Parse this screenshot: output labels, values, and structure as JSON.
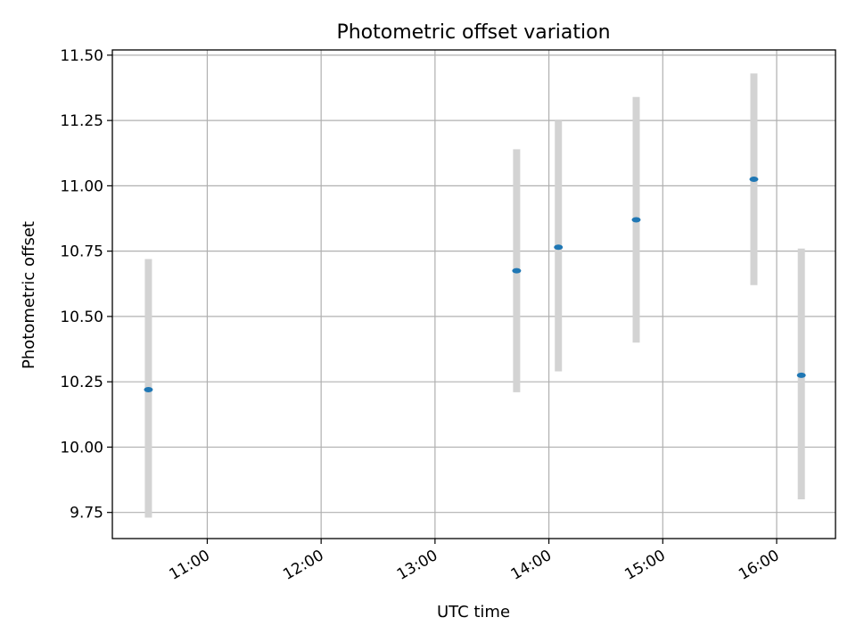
{
  "chart_data": {
    "type": "scatter",
    "title": "Photometric offset variation",
    "xlabel": "UTC time",
    "ylabel": "Photometric offset",
    "x_unit": "UTC time (HH:MM)",
    "xlim": [
      "10:10",
      "16:31"
    ],
    "ylim": [
      9.65,
      11.52
    ],
    "grid": true,
    "x_ticks": [
      "11:00",
      "12:00",
      "13:00",
      "14:00",
      "15:00",
      "16:00"
    ],
    "y_ticks": [
      "9.75",
      "10.00",
      "10.25",
      "10.50",
      "10.75",
      "11.00",
      "11.25",
      "11.50"
    ],
    "series": [
      {
        "marker_color": "#1f77b4",
        "errorbar_color": "#d3d3d3",
        "points": [
          {
            "x": "10:29",
            "y": 10.22,
            "yerr_low": 9.73,
            "yerr_high": 10.72
          },
          {
            "x": "13:43",
            "y": 10.675,
            "yerr_low": 10.21,
            "yerr_high": 11.14
          },
          {
            "x": "14:05",
            "y": 10.765,
            "yerr_low": 10.29,
            "yerr_high": 11.25
          },
          {
            "x": "14:46",
            "y": 10.87,
            "yerr_low": 10.4,
            "yerr_high": 11.34
          },
          {
            "x": "15:48",
            "y": 11.025,
            "yerr_low": 10.62,
            "yerr_high": 11.43
          },
          {
            "x": "16:13",
            "y": 10.275,
            "yerr_low": 9.8,
            "yerr_high": 10.76
          }
        ]
      }
    ]
  }
}
